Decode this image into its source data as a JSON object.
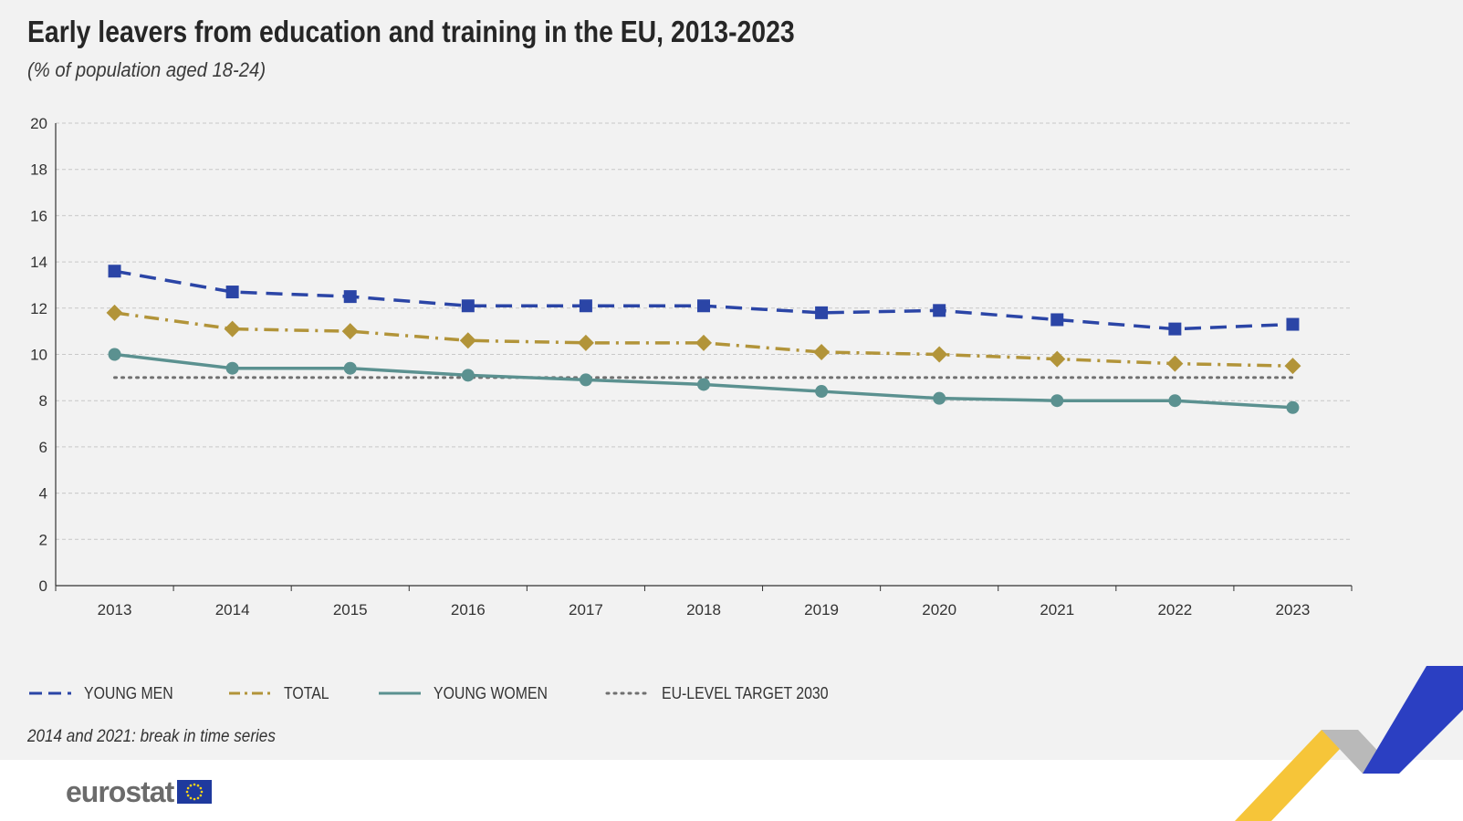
{
  "title": "Early leavers from education and training in the EU, 2013-2023",
  "subtitle": "(% of population aged 18-24)",
  "note": "2014 and 2021: break in time series",
  "logo_text": "eurostat",
  "logo_flag_icon": "eu-flag-icon",
  "chart_data": {
    "type": "line",
    "title": "Early leavers from education and training in the EU, 2013-2023",
    "subtitle": "(% of population aged 18-24)",
    "xlabel": "",
    "ylabel": "",
    "categories": [
      "2013",
      "2014",
      "2015",
      "2016",
      "2017",
      "2018",
      "2019",
      "2020",
      "2021",
      "2022",
      "2023"
    ],
    "ylim": [
      0,
      20
    ],
    "yticks": [
      0,
      2,
      4,
      6,
      8,
      10,
      12,
      14,
      16,
      18,
      20
    ],
    "grid": true,
    "legend_position": "bottom",
    "series": [
      {
        "name": "YOUNG MEN",
        "color": "#2b45a6",
        "marker": "square",
        "line": "dashed",
        "values": [
          13.6,
          12.7,
          12.5,
          12.1,
          12.1,
          12.1,
          11.8,
          11.9,
          11.5,
          11.1,
          11.3
        ]
      },
      {
        "name": "TOTAL",
        "color": "#b29439",
        "marker": "diamond",
        "line": "dashdot",
        "values": [
          11.8,
          11.1,
          11.0,
          10.6,
          10.5,
          10.5,
          10.1,
          10.0,
          9.8,
          9.6,
          9.5
        ]
      },
      {
        "name": "YOUNG WOMEN",
        "color": "#5b9190",
        "marker": "circle",
        "line": "solid",
        "values": [
          10.0,
          9.4,
          9.4,
          9.1,
          8.9,
          8.7,
          8.4,
          8.1,
          8.0,
          8.0,
          7.7
        ]
      },
      {
        "name": "EU-LEVEL TARGET 2030",
        "color": "#707070",
        "marker": "none",
        "line": "dotted",
        "values": [
          9,
          9,
          9,
          9,
          9,
          9,
          9,
          9,
          9,
          9,
          9
        ]
      }
    ]
  }
}
